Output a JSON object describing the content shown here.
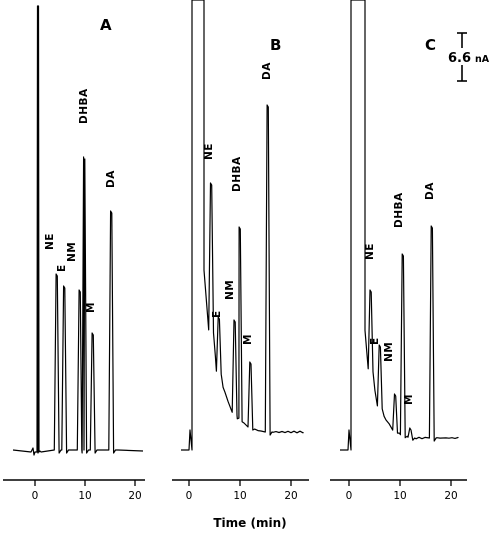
{
  "chart_data": [
    {
      "type": "line",
      "panel": "A",
      "x_ticks": [
        0,
        10,
        20
      ],
      "xlim": [
        -5,
        22
      ],
      "peaks": [
        {
          "label": "NE",
          "time": 4.3
        },
        {
          "label": "E",
          "time": 5.8
        },
        {
          "label": "NM",
          "time": 8.9
        },
        {
          "label": "DHBA",
          "time": 9.8
        },
        {
          "label": "M",
          "time": 11.5
        },
        {
          "label": "DA",
          "time": 15.2
        }
      ]
    },
    {
      "type": "line",
      "panel": "B",
      "x_ticks": [
        0,
        10,
        20
      ],
      "xlim": [
        -5,
        22
      ],
      "peaks": [
        {
          "label": "NE",
          "time": 4.3
        },
        {
          "label": "E",
          "time": 5.8
        },
        {
          "label": "NM",
          "time": 8.9
        },
        {
          "label": "DHBA",
          "time": 9.9
        },
        {
          "label": "M",
          "time": 12.0
        },
        {
          "label": "DA",
          "time": 15.4
        }
      ]
    },
    {
      "type": "line",
      "panel": "C",
      "x_ticks": [
        0,
        10,
        20
      ],
      "xlim": [
        -5,
        22
      ],
      "peaks": [
        {
          "label": "NE",
          "time": 4.2
        },
        {
          "label": "E",
          "time": 6.0
        },
        {
          "label": "NM",
          "time": 9.0
        },
        {
          "label": "DHBA",
          "time": 10.5
        },
        {
          "label": "M",
          "time": 12.0
        },
        {
          "label": "DA",
          "time": 16.2
        }
      ]
    }
  ],
  "xlabel": "Time (min)",
  "scale_bar": {
    "value": "6.6",
    "unit": "nA"
  }
}
